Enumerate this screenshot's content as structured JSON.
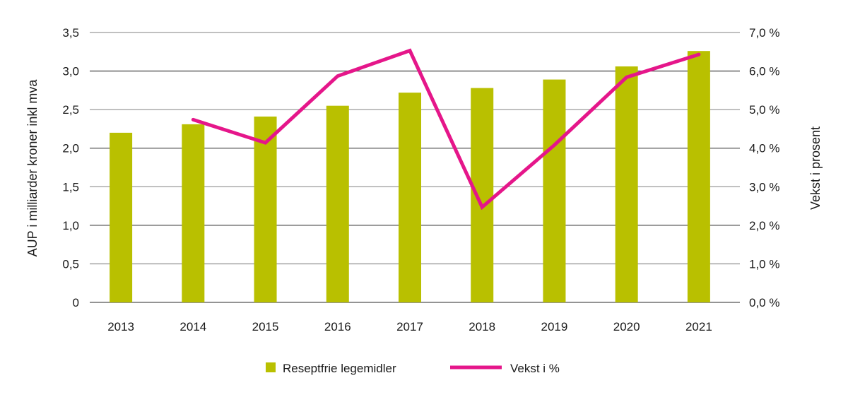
{
  "chart_data": {
    "type": "bar+line",
    "categories": [
      "2013",
      "2014",
      "2015",
      "2016",
      "2017",
      "2018",
      "2019",
      "2020",
      "2021"
    ],
    "series": [
      {
        "name": "Reseptfrie legemidler",
        "type": "bar",
        "axis": "left",
        "color": "#b9c000",
        "values": [
          2.2,
          2.31,
          2.41,
          2.55,
          2.72,
          2.78,
          2.89,
          3.06,
          3.26
        ]
      },
      {
        "name": "Vekst i %",
        "type": "line",
        "axis": "right",
        "color": "#e5168a",
        "values": [
          null,
          4.74,
          4.14,
          5.87,
          6.53,
          2.47,
          4.08,
          5.84,
          6.43
        ]
      }
    ],
    "ylabel": "AUP i milliarder kroner inkl mva",
    "y2label": "Vekst i prosent",
    "ylim": [
      0,
      3.5
    ],
    "y2lim": [
      0,
      7
    ],
    "yticks": [
      "0",
      "0,5",
      "1,0",
      "1,5",
      "2,0",
      "2,5",
      "3,0",
      "3,5"
    ],
    "y2ticks": [
      "0,0 %",
      "1,0 %",
      "2,0 %",
      "3,0 %",
      "4,0 %",
      "5,0 %",
      "6,0 %",
      "7,0 %"
    ],
    "grid": true,
    "legend": "bottom"
  }
}
